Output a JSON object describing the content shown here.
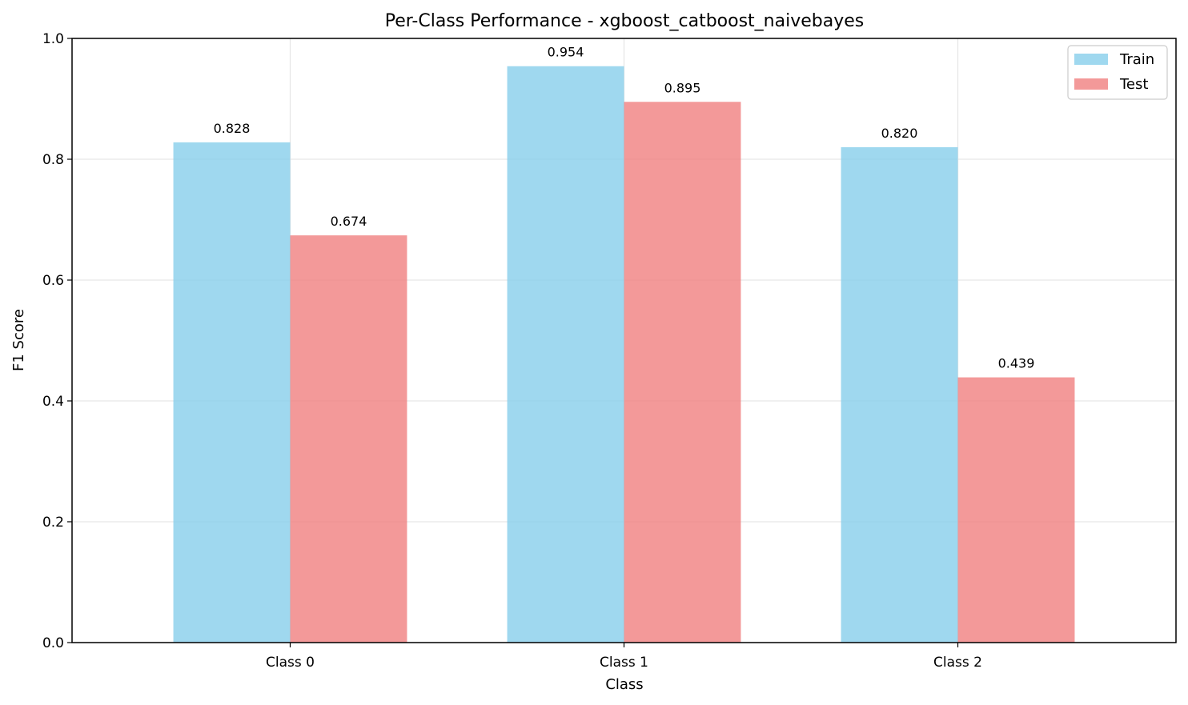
{
  "chart_data": {
    "type": "bar",
    "title": "Per-Class Performance - xgboost_catboost_naivebayes",
    "xlabel": "Class",
    "ylabel": "F1 Score",
    "categories": [
      "Class 0",
      "Class 1",
      "Class 2"
    ],
    "series": [
      {
        "name": "Train",
        "values": [
          0.828,
          0.954,
          0.82
        ],
        "labels": [
          "0.828",
          "0.954",
          "0.820"
        ],
        "color": "#87ceeb"
      },
      {
        "name": "Test",
        "values": [
          0.674,
          0.895,
          0.439
        ],
        "labels": [
          "0.674",
          "0.895",
          "0.439"
        ],
        "color": "#f08080"
      }
    ],
    "ylim": [
      0,
      1.0
    ],
    "yticks": [
      0.0,
      0.2,
      0.4,
      0.6,
      0.8,
      1.0
    ],
    "ytick_labels": [
      "0.0",
      "0.2",
      "0.4",
      "0.6",
      "0.8",
      "1.0"
    ],
    "grid": true,
    "legend_position": "top-right"
  }
}
